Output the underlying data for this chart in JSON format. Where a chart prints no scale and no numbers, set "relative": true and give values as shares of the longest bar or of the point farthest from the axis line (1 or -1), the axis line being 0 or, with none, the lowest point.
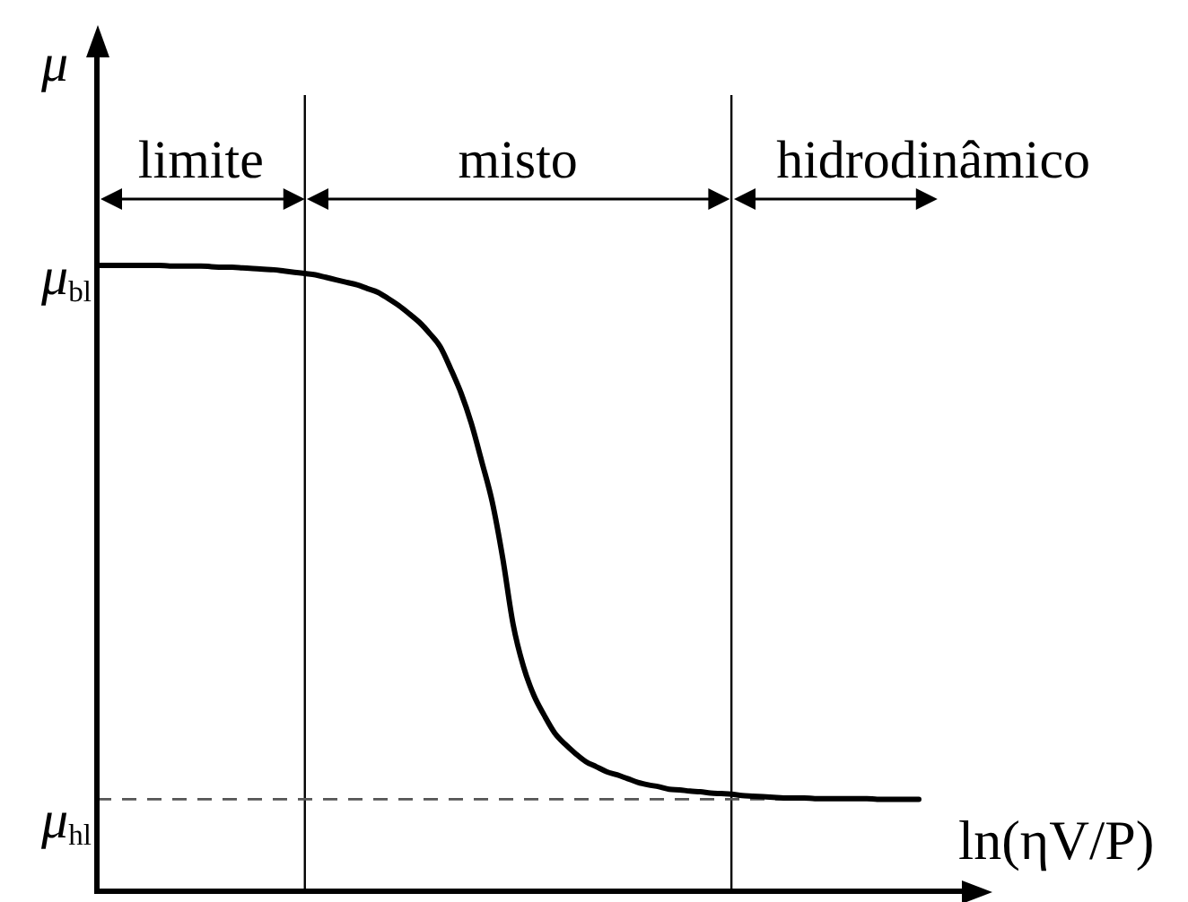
{
  "chart_data": {
    "type": "line",
    "xlabel": "ln(ηV/P)",
    "ylabel": "μ",
    "relative": true,
    "categories": [
      null,
      null,
      null,
      null,
      null,
      null,
      null,
      null,
      null,
      null,
      null,
      null,
      null,
      null,
      null,
      null,
      null,
      null,
      null,
      null,
      null,
      null,
      null,
      null,
      null,
      null,
      null,
      null,
      null,
      null,
      null,
      null,
      null,
      null,
      null,
      null,
      null,
      null,
      null,
      null,
      null,
      null,
      null,
      null,
      null,
      null,
      null,
      null,
      null,
      null,
      null,
      null,
      null,
      null,
      null,
      null,
      null,
      null,
      null,
      null,
      null,
      null,
      null,
      null,
      null,
      null,
      null,
      null,
      null,
      null,
      null,
      null,
      null,
      null,
      null,
      null,
      null,
      null,
      null,
      null
    ],
    "series": [
      {
        "color": "#000000",
        "values": [
          1,
          1,
          1,
          1,
          1,
          1,
          1,
          0.999,
          0.999,
          0.999,
          0.999,
          0.998,
          0.997,
          0.997,
          0.996,
          0.995,
          0.994,
          0.993,
          0.991,
          0.989,
          0.987,
          0.985,
          0.981,
          0.977,
          0.973,
          0.969,
          0.963,
          0.957,
          0.947,
          0.936,
          0.923,
          0.909,
          0.891,
          0.87,
          0.835,
          0.796,
          0.747,
          0.686,
          0.622,
          0.533,
          0.427,
          0.359,
          0.313,
          0.281,
          0.253,
          0.235,
          0.22,
          0.207,
          0.199,
          0.191,
          0.186,
          0.18,
          0.174,
          0.17,
          0.167,
          0.163,
          0.162,
          0.16,
          0.159,
          0.157,
          0.156,
          0.155,
          0.153,
          0.152,
          0.151,
          0.15,
          0.149,
          0.149,
          0.149,
          0.148,
          0.148,
          0.148,
          0.148,
          0.148,
          0.148,
          0.147,
          0.147,
          0.147,
          0.147,
          0.147
        ]
      }
    ],
    "ref_lines": [
      {
        "axis": "y",
        "value": 0.147,
        "label": "μ$_{hl}$",
        "color": "#555555",
        "line_style": "dashed"
      }
    ],
    "annotations": [
      "limite",
      "misto",
      "hidrodinâmico",
      "μ$_{bl}$"
    ]
  }
}
